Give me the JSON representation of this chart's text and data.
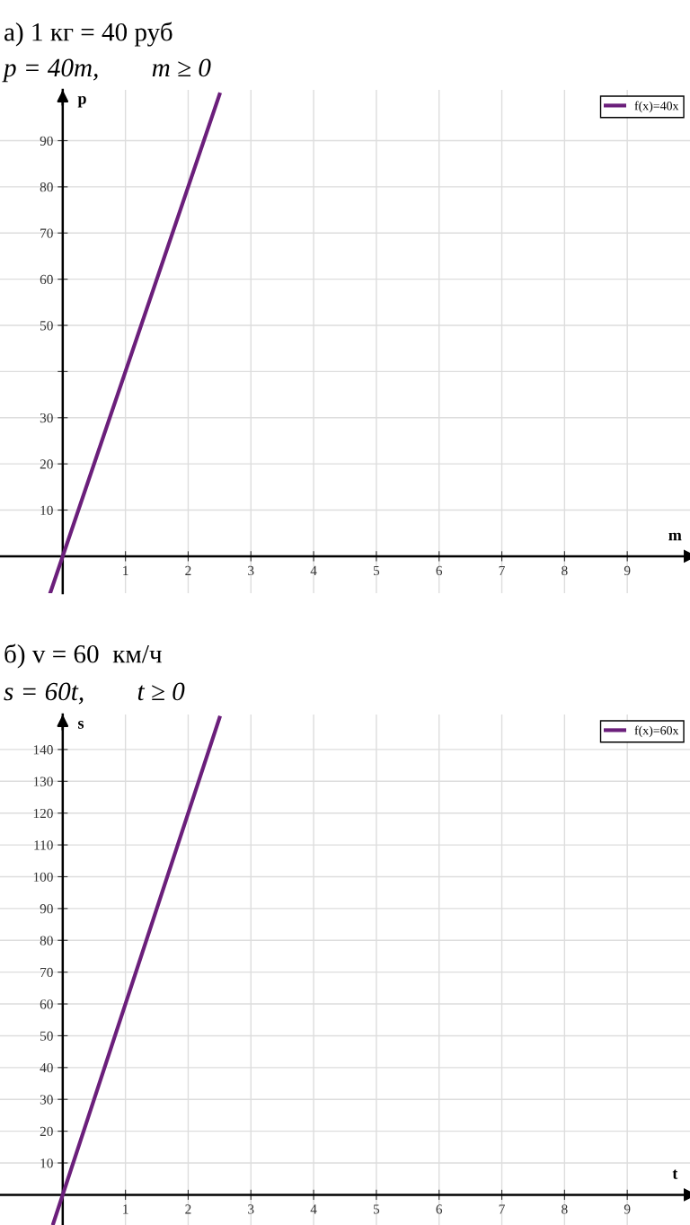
{
  "chart_data": [
    {
      "type": "line",
      "title": "а) 1 кг = 40 руб",
      "subtitle": "p = 40m,        m ≥ 0",
      "xlabel": "m",
      "ylabel": "p",
      "series": [
        {
          "name": "f(x)=40x",
          "color": "#6b1f7b",
          "x": [
            -0.2,
            2.5
          ],
          "values": [
            -8,
            100
          ]
        }
      ],
      "xlim": [
        -1,
        10
      ],
      "ylim": [
        -8,
        101
      ],
      "xticks": [
        1,
        2,
        3,
        4,
        5,
        6,
        7,
        8,
        9
      ],
      "yticks": [
        10,
        20,
        30,
        {
          "value": 40,
          "label": null
        },
        50,
        60,
        70,
        80,
        90
      ],
      "grid": true,
      "legend": "top right"
    },
    {
      "type": "line",
      "title": "б) v = 60  км/ч",
      "subtitle": "s = 60t,        t ≥ 0",
      "xlabel": "t",
      "ylabel": "s",
      "series": [
        {
          "name": "f(x)=60x",
          "color": "#6b1f7b",
          "x": [
            -0.15,
            2.5
          ],
          "values": [
            -9,
            150
          ]
        }
      ],
      "xlim": [
        -1,
        10
      ],
      "ylim": [
        -9.5,
        151
      ],
      "xticks": [
        1,
        2,
        3,
        4,
        5,
        6,
        7,
        8,
        9
      ],
      "yticks": [
        10,
        20,
        30,
        40,
        50,
        60,
        70,
        80,
        90,
        100,
        110,
        120,
        130,
        140
      ],
      "grid": true,
      "legend": "top right"
    }
  ]
}
